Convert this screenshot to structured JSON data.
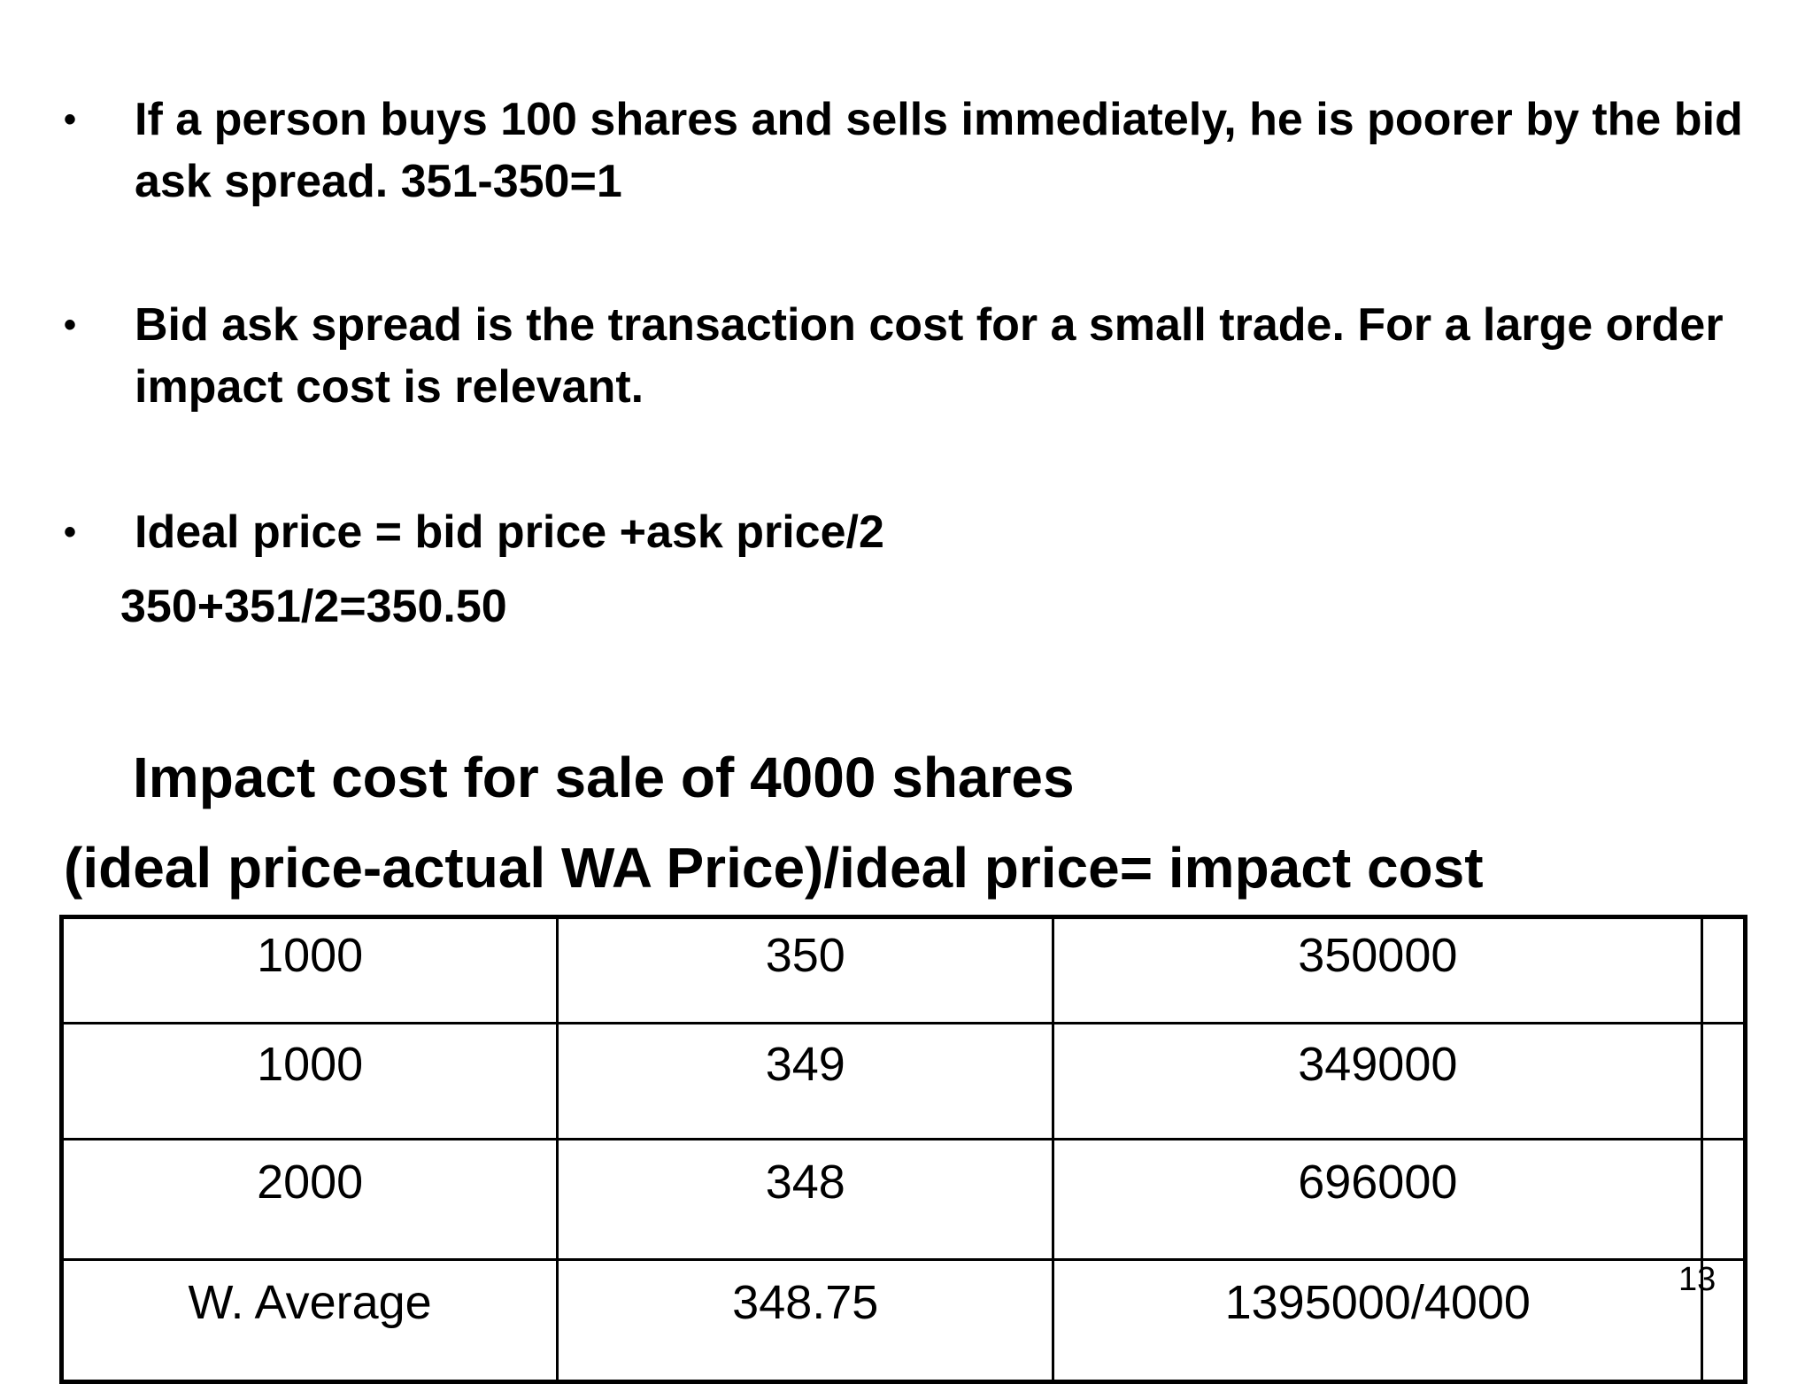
{
  "bullets": [
    {
      "symbol": "•",
      "text": "If a person buys 100 shares and sells immediately, he is poorer by the bid ask spread.  351-350=1"
    },
    {
      "symbol": "•",
      "text": "Bid ask spread is the transaction cost for a small trade. For a large order impact cost is relevant."
    },
    {
      "symbol": "•",
      "text": "Ideal price = bid price +ask price/2"
    }
  ],
  "ideal_price_example": "350+351/2=350.50",
  "section_heading": "Impact cost for  sale of 4000 shares",
  "formula": "(ideal price-actual WA Price)/ideal price= impact cost",
  "table": {
    "rows": [
      [
        "1000",
        "350",
        "350000",
        ""
      ],
      [
        "1000",
        "349",
        "349000",
        ""
      ],
      [
        "2000",
        "348",
        "696000",
        ""
      ],
      [
        "W. Average",
        "348.75",
        "1395000/4000",
        ""
      ]
    ]
  },
  "page_number": "13"
}
